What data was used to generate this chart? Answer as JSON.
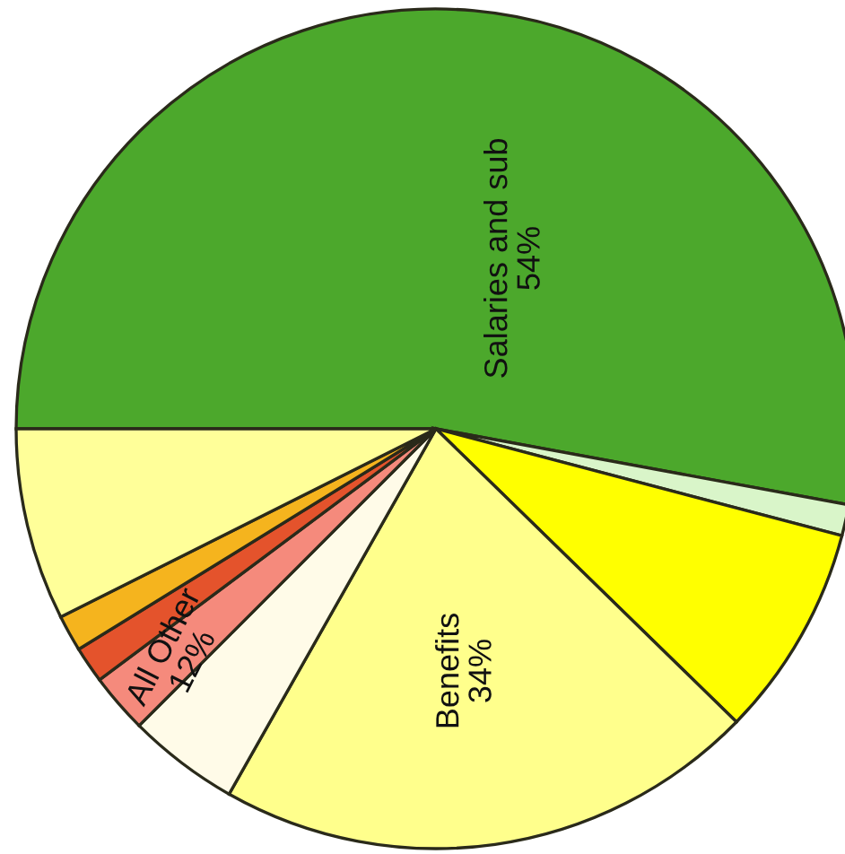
{
  "chart_data": {
    "type": "pie",
    "categories": [
      null,
      null,
      null,
      null,
      null,
      null,
      null,
      null,
      null
    ],
    "values": [
      52.9,
      1.2,
      8.2,
      20.9,
      4.3,
      2.3,
      1.4,
      1.4,
      7.4
    ],
    "colors": [
      "#4ca82c",
      "#d9f5c9",
      "#ffff00",
      "#ffff8c",
      "#fffbe8",
      "#f58a7c",
      "#e4532c",
      "#f5b41e",
      "#ffff99"
    ],
    "annotations": [
      "Salaries and sub\n54%",
      "Benefits\n34%",
      "All Other\n12%"
    ]
  }
}
